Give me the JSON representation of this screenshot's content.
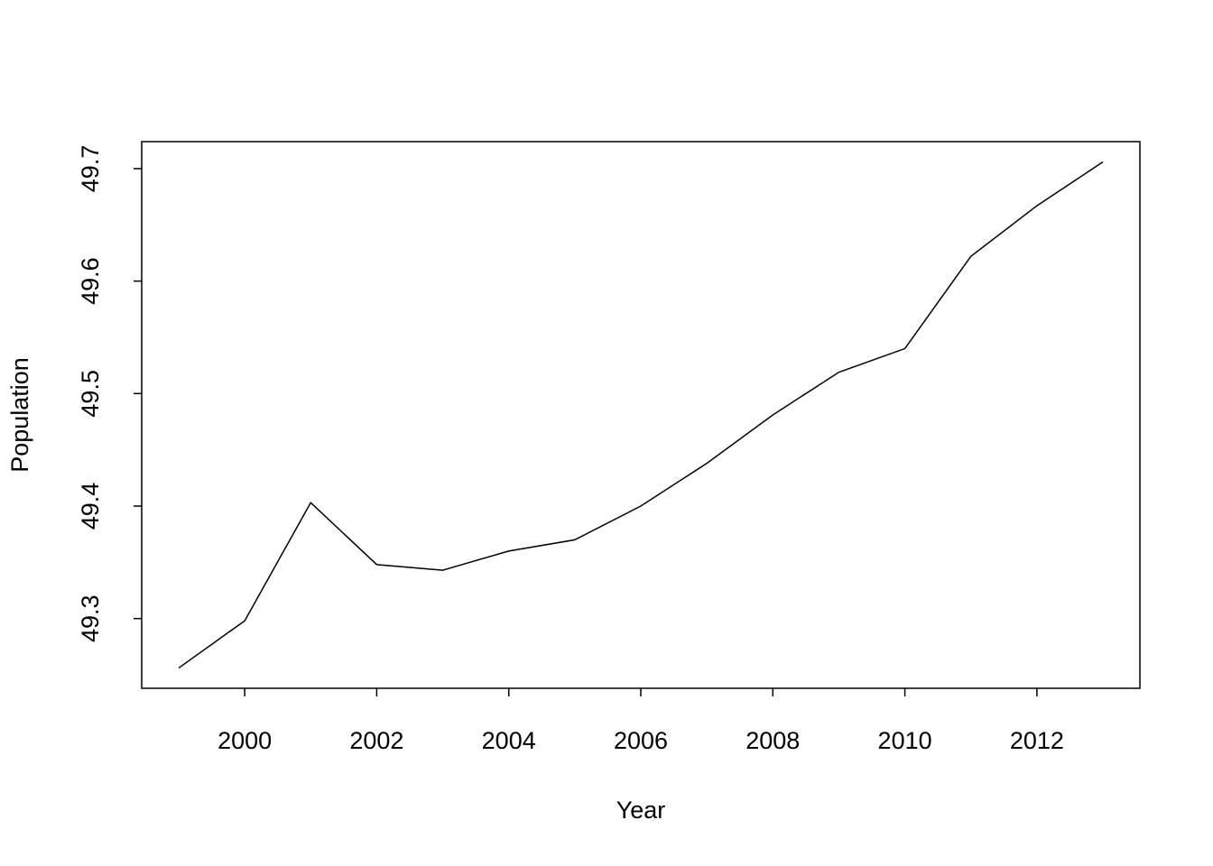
{
  "chart_data": {
    "type": "line",
    "x_label": "Year",
    "y_label": "Population",
    "x": [
      1999,
      2000,
      2001,
      2002,
      2003,
      2004,
      2005,
      2006,
      2007,
      2008,
      2009,
      2010,
      2011,
      2012,
      2013
    ],
    "series": [
      {
        "color": "#000000",
        "values": [
          49.256,
          49.298,
          49.403,
          49.348,
          49.343,
          49.36,
          49.37,
          49.4,
          49.438,
          49.481,
          49.519,
          49.54,
          49.622,
          49.667,
          49.706
        ]
      }
    ],
    "xlim": [
      1998.44,
      2013.56
    ],
    "xticks": [
      2000,
      2002,
      2004,
      2006,
      2008,
      2010,
      2012
    ],
    "ylim": [
      49.238,
      49.724
    ],
    "yticks": [
      49.3,
      49.4,
      49.5,
      49.6,
      49.7
    ]
  }
}
